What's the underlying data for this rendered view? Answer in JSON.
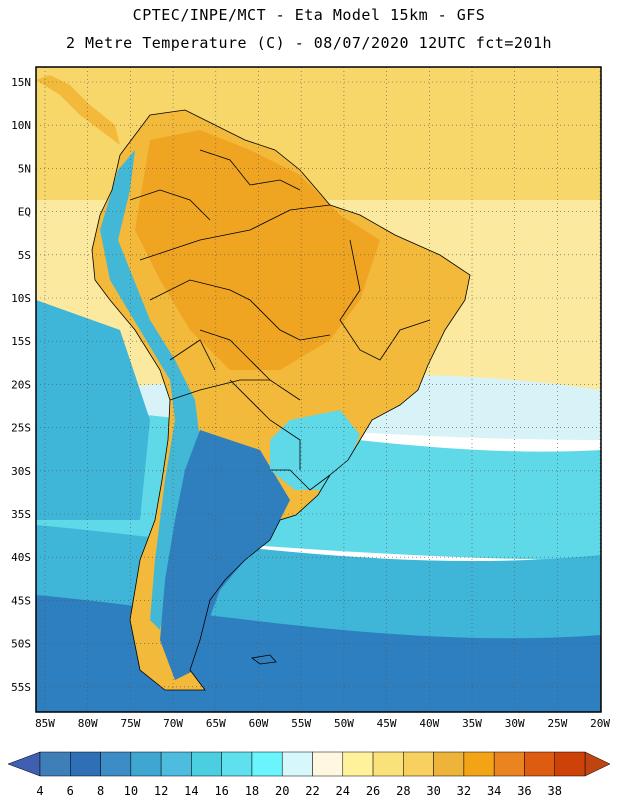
{
  "header": {
    "line1": "CPTEC/INPE/MCT -  Eta Model 15km - GFS",
    "line2": "2 Metre Temperature (C) - 08/07/2020 12UTC fct=201h"
  },
  "map": {
    "latitude_labels": [
      "15N",
      "10N",
      "5N",
      "EQ",
      "5S",
      "10S",
      "15S",
      "20S",
      "25S",
      "30S",
      "35S",
      "40S",
      "45S",
      "50S",
      "55S"
    ],
    "longitude_labels": [
      "85W",
      "80W",
      "75W",
      "70W",
      "65W",
      "60W",
      "55W",
      "50W",
      "45W",
      "40W",
      "35W",
      "30W",
      "25W",
      "20W"
    ],
    "colors": {
      "ocean_north": "#f7d66a",
      "ocean_trop": "#fbe9a0",
      "ocean_sub": "#5fd8e8",
      "ocean_mid": "#3fb6d8",
      "ocean_south": "#2d7fc0",
      "ocean_far": "#2a64ae",
      "land_hot": "#f0a522",
      "land_warm": "#f3b93a",
      "andes": "#43b8d6",
      "patagonia": "#2f7fbf"
    }
  },
  "colorbar": {
    "labels": [
      "4",
      "6",
      "8",
      "10",
      "12",
      "14",
      "16",
      "18",
      "20",
      "22",
      "24",
      "26",
      "28",
      "30",
      "32",
      "34",
      "36",
      "38"
    ],
    "colors": [
      "#3f7fb8",
      "#2e6fb6",
      "#3c8cc6",
      "#3fa6d2",
      "#4dbcdf",
      "#4bcfe0",
      "#5fe0ee",
      "#6af4fb",
      "#d6f7fb",
      "#fff7e0",
      "#fff29a",
      "#fbe17a",
      "#f7d060",
      "#eeb43a",
      "#f2a416",
      "#ea8420",
      "#de5c12",
      "#cc4208"
    ],
    "end_colors": [
      "#3f5fb0",
      "#c04410"
    ]
  }
}
